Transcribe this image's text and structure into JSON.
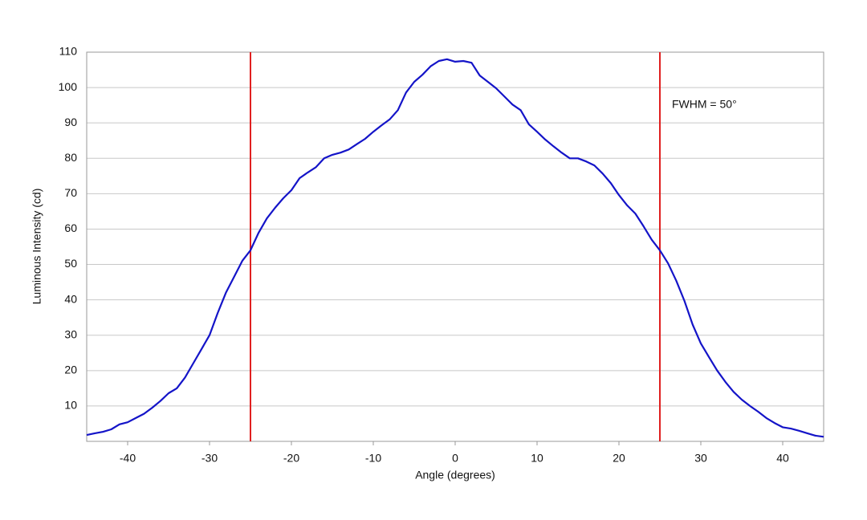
{
  "chart_data": {
    "type": "line",
    "x_label": "Angle (degrees)",
    "y_label": "Luminous Intensity (cd)",
    "annotation": "FWHM = 50°",
    "x": [
      -45,
      -44,
      -43,
      -42,
      -41,
      -40,
      -39,
      -38,
      -37,
      -36,
      -35,
      -34,
      -33,
      -32,
      -31,
      -30,
      -29,
      -28,
      -27,
      -26,
      -25,
      -24,
      -23,
      -22,
      -21,
      -20,
      -19,
      -18,
      -17,
      -16,
      -15,
      -14,
      -13,
      -12,
      -11,
      -10,
      -9,
      -8,
      -7,
      -6,
      -5,
      -4,
      -3,
      -2,
      -1,
      0,
      1,
      2,
      3,
      4,
      5,
      6,
      7,
      8,
      9,
      10,
      11,
      12,
      13,
      14,
      15,
      16,
      17,
      18,
      19,
      20,
      21,
      22,
      23,
      24,
      25,
      26,
      27,
      28,
      29,
      30,
      31,
      32,
      33,
      34,
      35,
      36,
      37,
      38,
      39,
      40,
      41,
      42,
      43,
      44,
      45
    ],
    "series": [
      {
        "name": "Luminous Intensity",
        "color": "#1414c8",
        "values": [
          1.8,
          2.3,
          2.7,
          3.4,
          4.8,
          5.4,
          6.6,
          7.8,
          9.5,
          11.4,
          13.6,
          15,
          18,
          22,
          26,
          30,
          36.3,
          42,
          46.5,
          51,
          54,
          59,
          63,
          66,
          68.7,
          71,
          74.4,
          76,
          77.5,
          80,
          81,
          81.6,
          82.5,
          84,
          85.5,
          87.5,
          89.3,
          91,
          93.6,
          98.6,
          101.6,
          103.6,
          106,
          107.5,
          108,
          107.3,
          107.5,
          107,
          103.4,
          101.6,
          99.8,
          97.5,
          95.2,
          93.6,
          89.6,
          87.5,
          85.3,
          83.4,
          81.6,
          80,
          80,
          79.1,
          78,
          75.7,
          73,
          69.6,
          66.7,
          64.4,
          60.8,
          57,
          54,
          50.3,
          45.4,
          39.7,
          33,
          27.7,
          23.8,
          20,
          16.8,
          14,
          11.8,
          10,
          8.4,
          6.6,
          5.2,
          4,
          3.6,
          3,
          2.3,
          1.6,
          1.3
        ]
      }
    ],
    "vlines": [
      -25,
      25
    ],
    "vline_color": "#e02020",
    "xlim": [
      -45,
      45
    ],
    "xticks": [
      -40,
      -30,
      -20,
      -10,
      0,
      10,
      20,
      30,
      40
    ],
    "ylim": [
      0,
      110
    ],
    "yticks": [
      10,
      20,
      30,
      40,
      50,
      60,
      70,
      80,
      90,
      100,
      110
    ],
    "grid": true
  }
}
